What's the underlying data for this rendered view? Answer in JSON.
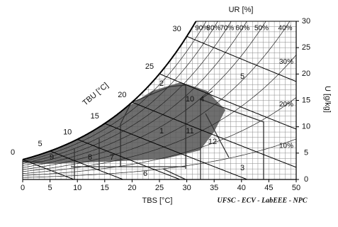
{
  "chart_data": {
    "type": "psychrometric",
    "x_label": "TBS [°C]",
    "y_label": "U [g/kg]",
    "rh_label": "UR [%]",
    "wb_label": "TBU [°C]",
    "xlim": [
      0,
      50
    ],
    "xticks": [
      0,
      5,
      10,
      15,
      20,
      25,
      30,
      35,
      40,
      45,
      50
    ],
    "ylim": [
      0,
      30
    ],
    "yticks": [
      0,
      5,
      10,
      15,
      20,
      25,
      30
    ],
    "grid": true,
    "rh_lines": [
      {
        "value": 90,
        "label": "90%"
      },
      {
        "value": 80,
        "label": "80%"
      },
      {
        "value": 70,
        "label": "70%"
      },
      {
        "value": 60,
        "label": "60%"
      },
      {
        "value": 50,
        "label": "50%"
      },
      {
        "value": 40,
        "label": "40%"
      },
      {
        "value": 30,
        "label": "30%"
      },
      {
        "value": 20,
        "label": "20%"
      },
      {
        "value": 10,
        "label": "10%"
      }
    ],
    "wb_lines": [
      0,
      5,
      10,
      15,
      20,
      25,
      30
    ],
    "zones": [
      "1",
      "2",
      "3",
      "4",
      "5",
      "6",
      "7",
      "8",
      "9",
      "10",
      "11",
      "12"
    ],
    "color": "#555555"
  },
  "footer": "UFSC - ECV - LabEEE - NPC"
}
